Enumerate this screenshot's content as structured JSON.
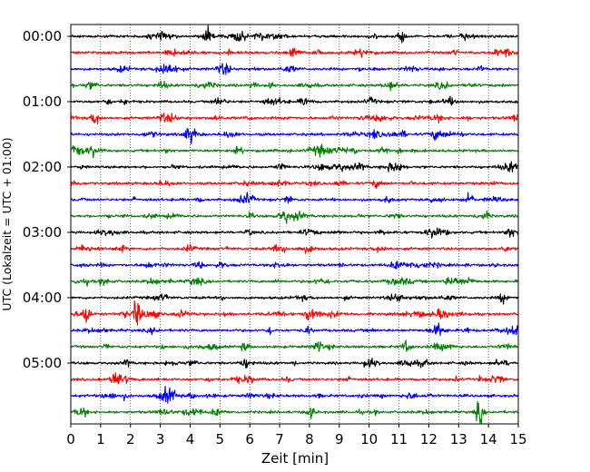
{
  "chart_data": {
    "type": "line",
    "title": "",
    "xlabel": "Zeit  [min]",
    "ylabel": "UTC (Lokalzeit = UTC + 01:00)",
    "xlim": [
      0,
      15
    ],
    "x_ticks": [
      "0",
      "1",
      "2",
      "3",
      "4",
      "5",
      "6",
      "7",
      "8",
      "9",
      "10",
      "11",
      "12",
      "13",
      "14",
      "15"
    ],
    "y_tick_labels": [
      "00:00",
      "01:00",
      "02:00",
      "03:00",
      "04:00",
      "05:00"
    ],
    "y_tick_traces": [
      0,
      4,
      8,
      12,
      16,
      20
    ],
    "trace_interval_min": 15,
    "trace_count": 24,
    "color_cycle": [
      "#000000",
      "#ff0000",
      "#0000ff",
      "#008000"
    ],
    "grid": "vertical dotted lines at each minute",
    "events": [
      {
        "trace": 17,
        "time_min": 0.5,
        "amplitude": 12
      },
      {
        "trace": 17,
        "time_min": 2.2,
        "amplitude": 14
      },
      {
        "trace": 17,
        "time_min": 8.0,
        "amplitude": 7
      },
      {
        "trace": 23,
        "time_min": 13.7,
        "amplitude": 12
      },
      {
        "trace": 10,
        "time_min": 13.4,
        "amplitude": 6
      }
    ]
  }
}
